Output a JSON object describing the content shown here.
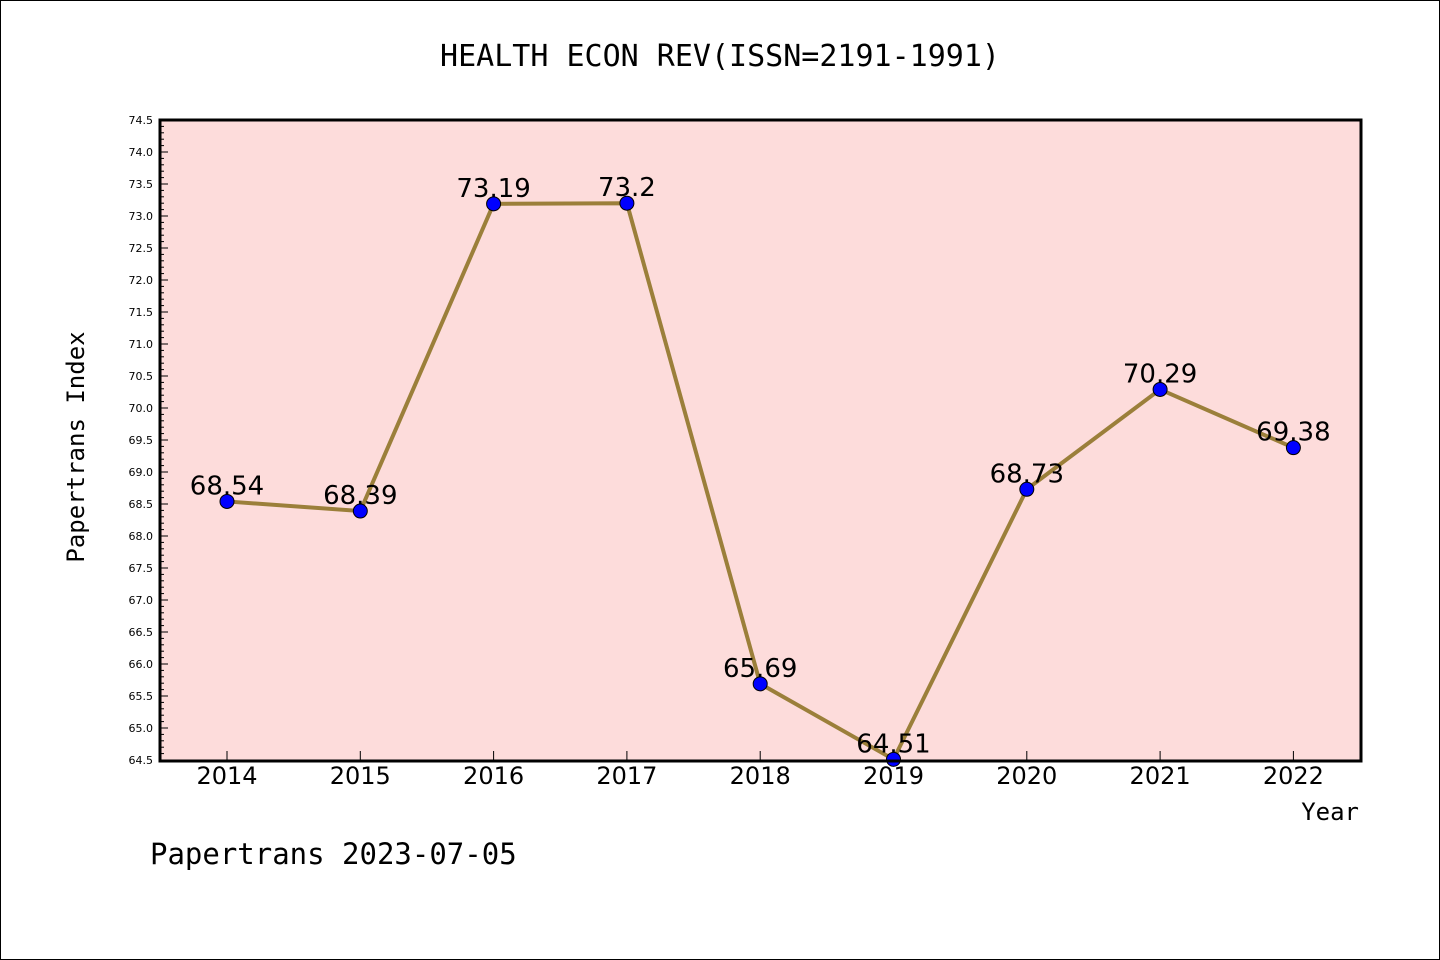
{
  "chart_data": {
    "type": "line",
    "title": "HEALTH ECON REV(ISSN=2191-1991)",
    "xlabel": "Year",
    "ylabel": "Papertrans Index",
    "footer": "Papertrans 2023-07-05",
    "ylim": [
      64.5,
      74.5
    ],
    "categories": [
      "2014",
      "2015",
      "2016",
      "2017",
      "2018",
      "2019",
      "2020",
      "2021",
      "2022"
    ],
    "series": [
      {
        "values": [
          68.54,
          68.39,
          73.19,
          73.2,
          65.69,
          64.51,
          68.73,
          70.29,
          69.38
        ],
        "labels": [
          "68.54",
          "68.39",
          "73.19",
          "73.2",
          "65.69",
          "64.51",
          "68.73",
          "70.29",
          "69.38"
        ],
        "line_color": "#9b7f3a",
        "marker_color": "#0000ff"
      }
    ],
    "yticks": [
      "64.5",
      "65.0",
      "65.5",
      "66.0",
      "66.5",
      "67.0",
      "67.5",
      "68.0",
      "68.5",
      "69.0",
      "69.5",
      "70.0",
      "70.5",
      "71.0",
      "71.5",
      "72.0",
      "72.5",
      "73.0",
      "73.5",
      "74.0",
      "74.5"
    ],
    "plot_background": "#fddcdb",
    "grid": false
  }
}
